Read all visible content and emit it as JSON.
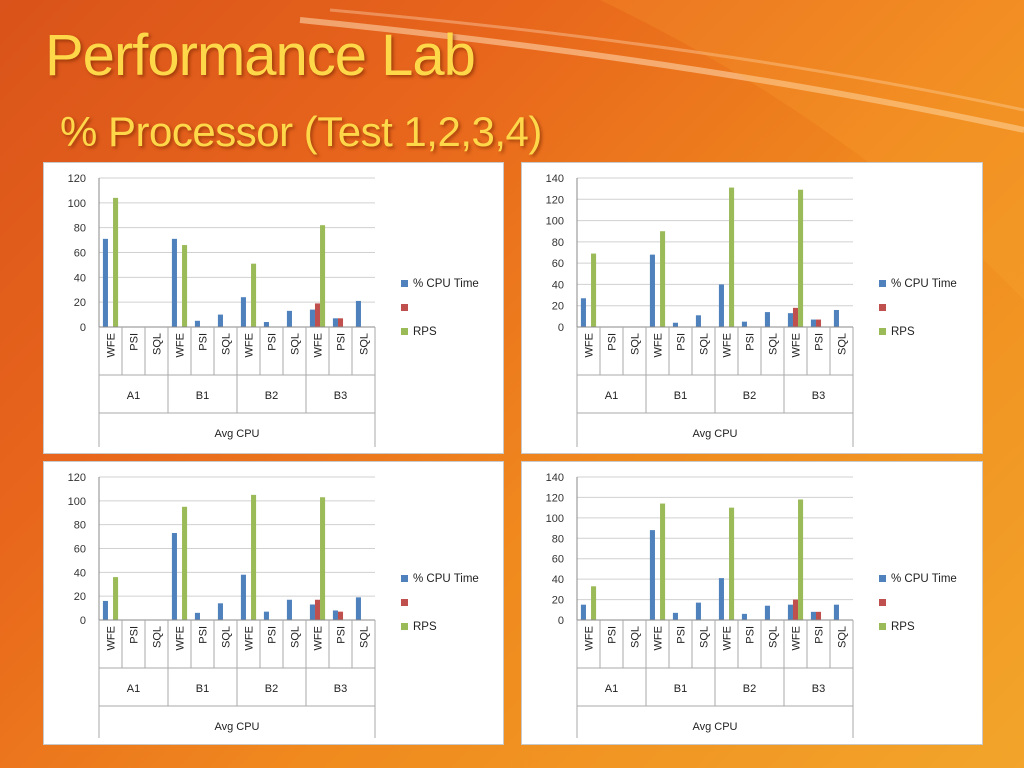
{
  "slide": {
    "title": "Performance Lab",
    "subtitle": "% Processor (Test 1,2,3,4)"
  },
  "colors": {
    "cpu": "#4f81bd",
    "red": "#c0504d",
    "rps": "#9bbb59",
    "title": "#ffd84a"
  },
  "chart_data": [
    {
      "type": "bar",
      "xlabel": "Avg CPU",
      "groups": [
        "A1",
        "B1",
        "B2",
        "B3"
      ],
      "subcategories": [
        "WFE",
        "PSI",
        "SQL"
      ],
      "ylim": [
        0,
        120
      ],
      "yticks": [
        0,
        20,
        40,
        60,
        80,
        100,
        120
      ],
      "legend": {
        "placement": "right",
        "entries": [
          "% CPU Time",
          "",
          "RPS"
        ]
      },
      "series": [
        {
          "name": "% CPU Time",
          "values": [
            71,
            0,
            0,
            71,
            5,
            10,
            24,
            4,
            13,
            14,
            7,
            21
          ]
        },
        {
          "name": "",
          "values": [
            0,
            0,
            0,
            0,
            0,
            0,
            0,
            0,
            0,
            19,
            7,
            0
          ]
        },
        {
          "name": "RPS",
          "values": [
            104,
            0,
            0,
            66,
            0,
            0,
            51,
            0,
            0,
            82,
            0,
            0
          ]
        }
      ]
    },
    {
      "type": "bar",
      "xlabel": "Avg CPU",
      "groups": [
        "A1",
        "B1",
        "B2",
        "B3"
      ],
      "subcategories": [
        "WFE",
        "PSI",
        "SQL"
      ],
      "ylim": [
        0,
        140
      ],
      "yticks": [
        0,
        20,
        40,
        60,
        80,
        100,
        120,
        140
      ],
      "legend": {
        "placement": "right",
        "entries": [
          "% CPU Time",
          "",
          "RPS"
        ]
      },
      "series": [
        {
          "name": "% CPU Time",
          "values": [
            27,
            0,
            0,
            68,
            4,
            11,
            40,
            5,
            14,
            13,
            7,
            16
          ]
        },
        {
          "name": "",
          "values": [
            0,
            0,
            0,
            0,
            0,
            0,
            0,
            0,
            0,
            18,
            7,
            0
          ]
        },
        {
          "name": "RPS",
          "values": [
            69,
            0,
            0,
            90,
            0,
            0,
            131,
            0,
            0,
            129,
            0,
            0
          ]
        }
      ]
    },
    {
      "type": "bar",
      "xlabel": "Avg CPU",
      "groups": [
        "A1",
        "B1",
        "B2",
        "B3"
      ],
      "subcategories": [
        "WFE",
        "PSI",
        "SQL"
      ],
      "ylim": [
        0,
        120
      ],
      "yticks": [
        0,
        20,
        40,
        60,
        80,
        100,
        120
      ],
      "legend": {
        "placement": "right",
        "entries": [
          "% CPU Time",
          "",
          "RPS"
        ]
      },
      "series": [
        {
          "name": "% CPU Time",
          "values": [
            16,
            0,
            0,
            73,
            6,
            14,
            38,
            7,
            17,
            13,
            8,
            19
          ]
        },
        {
          "name": "",
          "values": [
            0,
            0,
            0,
            0,
            0,
            0,
            0,
            0,
            0,
            17,
            7,
            0
          ]
        },
        {
          "name": "RPS",
          "values": [
            36,
            0,
            0,
            95,
            0,
            0,
            105,
            0,
            0,
            103,
            0,
            0
          ]
        }
      ]
    },
    {
      "type": "bar",
      "xlabel": "Avg CPU",
      "groups": [
        "A1",
        "B1",
        "B2",
        "B3"
      ],
      "subcategories": [
        "WFE",
        "PSI",
        "SQL"
      ],
      "ylim": [
        0,
        140
      ],
      "yticks": [
        0,
        20,
        40,
        60,
        80,
        100,
        120,
        140
      ],
      "legend": {
        "placement": "right",
        "entries": [
          "% CPU Time",
          "",
          "RPS"
        ]
      },
      "series": [
        {
          "name": "% CPU Time",
          "values": [
            15,
            0,
            0,
            88,
            7,
            17,
            41,
            6,
            14,
            15,
            8,
            15
          ]
        },
        {
          "name": "",
          "values": [
            0,
            0,
            0,
            0,
            0,
            0,
            0,
            0,
            0,
            20,
            8,
            0
          ]
        },
        {
          "name": "RPS",
          "values": [
            33,
            0,
            0,
            114,
            0,
            0,
            110,
            0,
            0,
            118,
            0,
            0
          ]
        }
      ]
    }
  ]
}
